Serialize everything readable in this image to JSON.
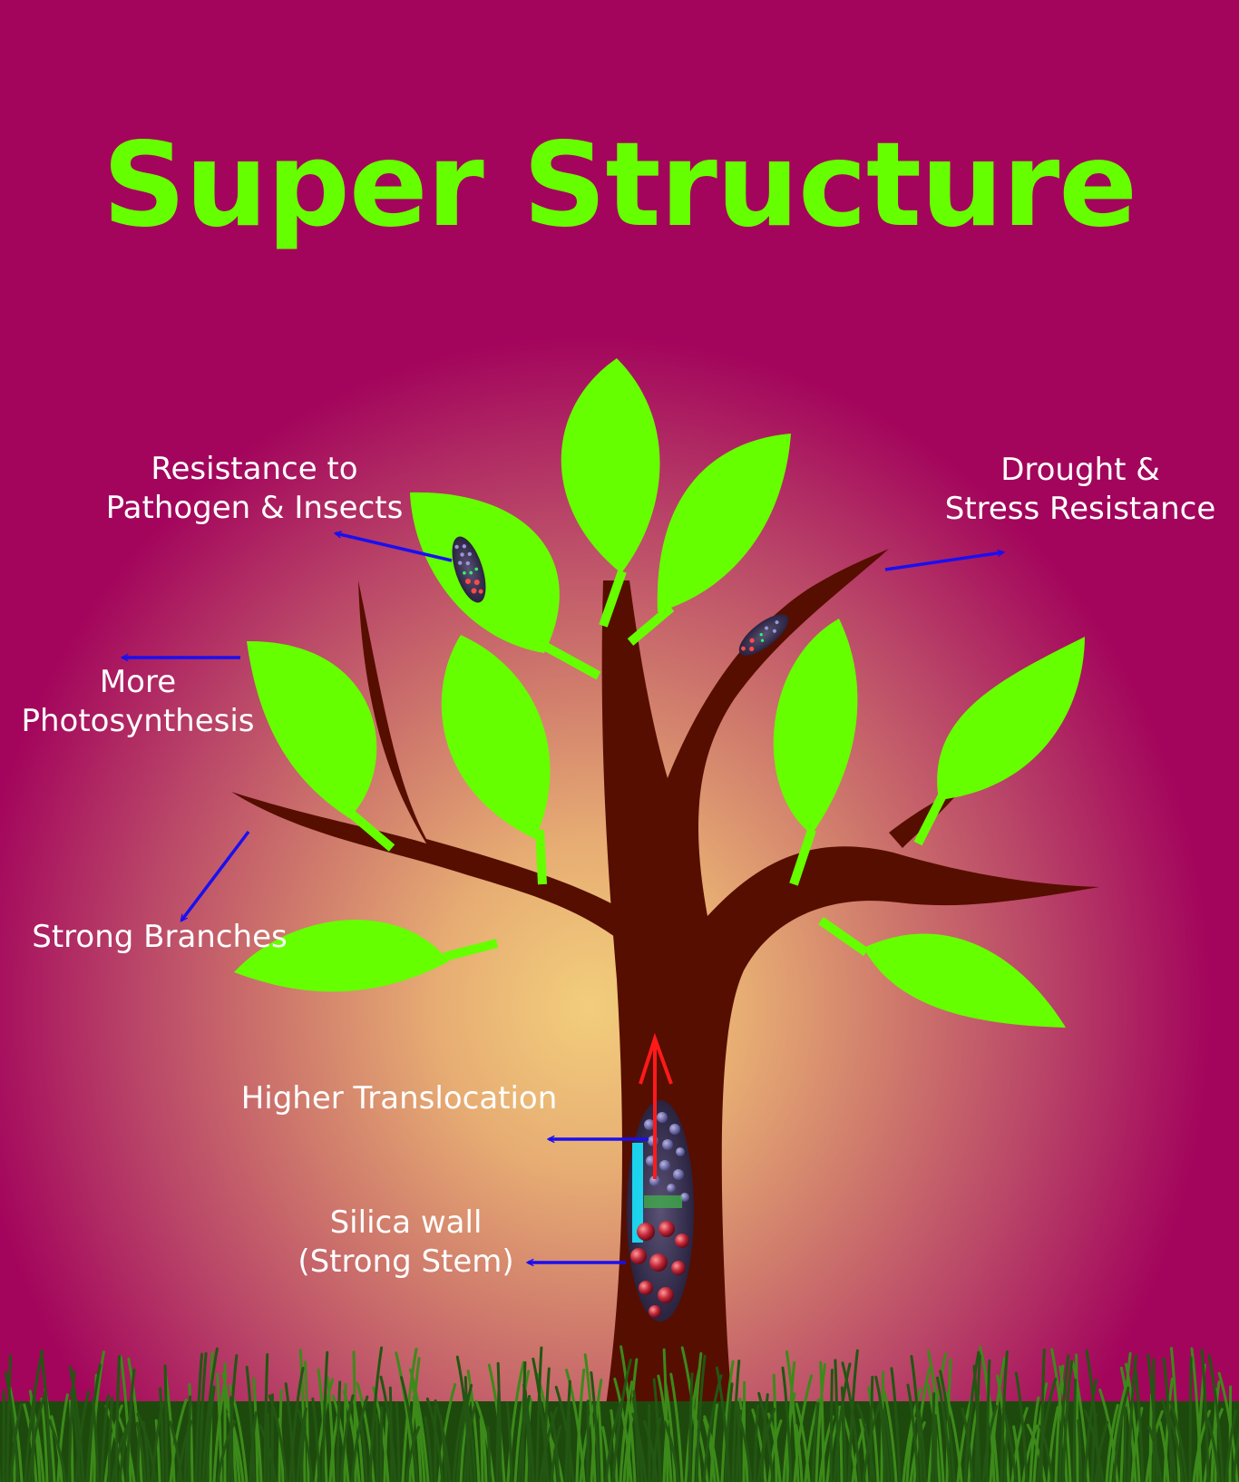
{
  "title": "Super Structure",
  "labels": {
    "pathogen": [
      "Resistance to",
      "Pathogen & Insects"
    ],
    "drought": [
      "Drought &",
      "Stress Resistance"
    ],
    "photosynthesis": [
      "More",
      "Photosynthesis"
    ],
    "branches": "Strong Branches",
    "translocation": "Higher Translocation",
    "silica": [
      "Silica wall",
      "(Strong Stem)"
    ]
  },
  "colors": {
    "background": "#a3055c",
    "glow": "#f2ce7c",
    "title": "#66ff00",
    "leaf": "#66ff00",
    "trunk": "#560e00",
    "arrow": "#1a0ff0",
    "translocation_arrow": "#ff1a1a",
    "grass": "#2f6a12",
    "label": "#ffffff"
  },
  "icons": [
    "tree-icon",
    "leaf-icon",
    "grass-icon",
    "silica-cell-icon",
    "arrow-icon"
  ]
}
